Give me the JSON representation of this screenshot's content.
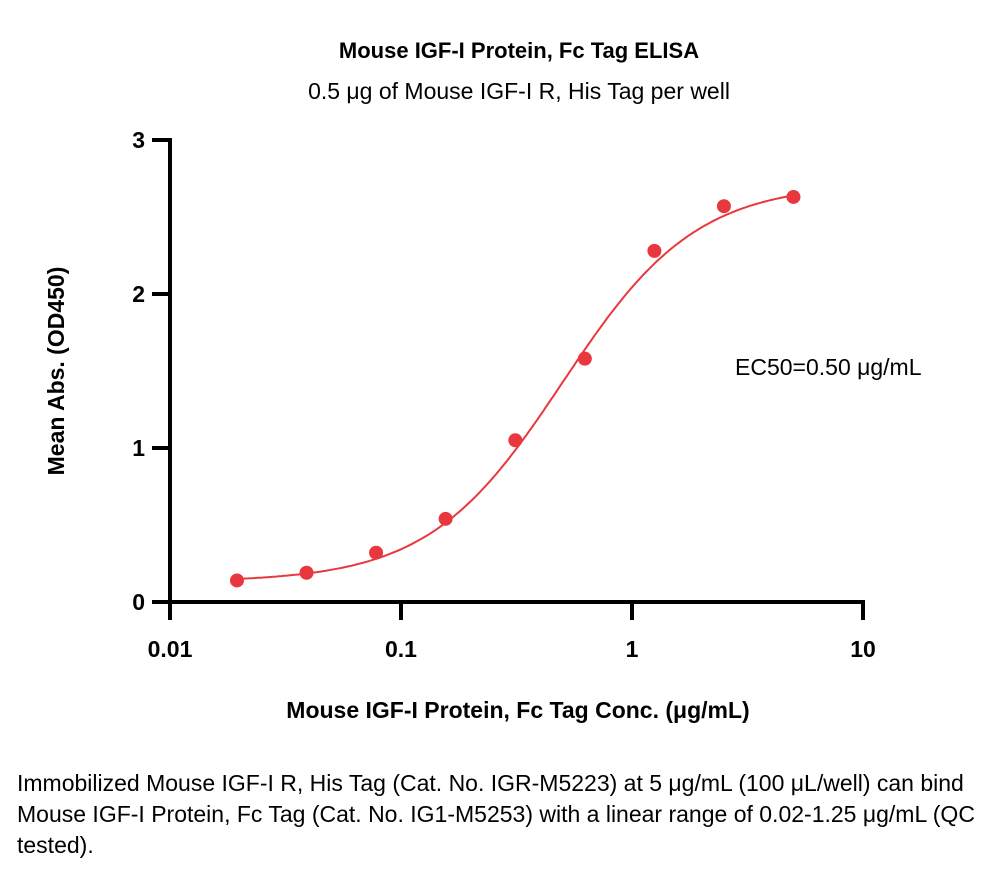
{
  "chart_data": {
    "type": "scatter",
    "title": "Mouse IGF-I Protein, Fc Tag ELISA",
    "subtitle": "0.5 μg of Mouse IGF-I R, His Tag per well",
    "xlabel": "Mouse IGF-I Protein, Fc Tag Conc. (μg/mL)",
    "ylabel": "Mean Abs. (OD450)",
    "xscale": "log",
    "xlim": [
      0.01,
      10
    ],
    "ylim": [
      0,
      3
    ],
    "xticks": [
      "0.01",
      "0.1",
      "1",
      "10"
    ],
    "yticks": [
      "0",
      "1",
      "2",
      "3"
    ],
    "grid": false,
    "color": "#e8383d",
    "x": [
      0.0195,
      0.039,
      0.078,
      0.156,
      0.3125,
      0.625,
      1.25,
      2.5,
      5
    ],
    "y": [
      0.14,
      0.19,
      0.32,
      0.54,
      1.05,
      1.58,
      2.28,
      2.57,
      2.63
    ],
    "fit": {
      "model": "4PL",
      "bottom": 0.13,
      "top": 2.72,
      "ec50": 0.5,
      "hill": 1.5
    },
    "annotation": "EC50=0.50 μg/mL"
  },
  "caption": "Immobilized Mouse IGF-I R, His Tag (Cat. No. IGR-M5223) at 5 μg/mL (100 μL/well) can bind Mouse IGF-I Protein, Fc Tag (Cat. No. IG1-M5253) with a linear range of 0.02-1.25 μg/mL (QC tested)."
}
